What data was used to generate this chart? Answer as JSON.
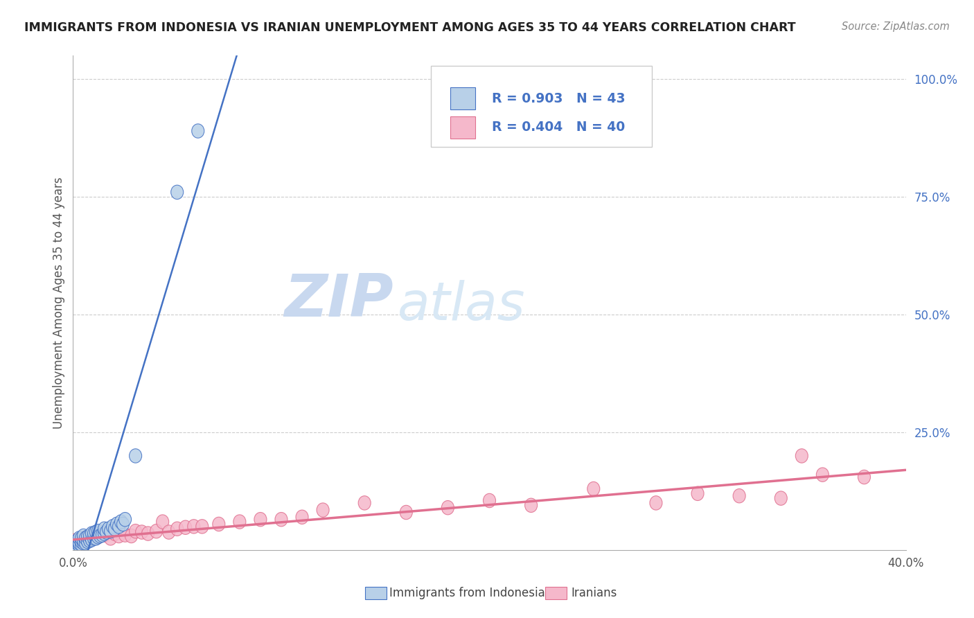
{
  "title": "IMMIGRANTS FROM INDONESIA VS IRANIAN UNEMPLOYMENT AMONG AGES 35 TO 44 YEARS CORRELATION CHART",
  "source_text": "Source: ZipAtlas.com",
  "ylabel": "Unemployment Among Ages 35 to 44 years",
  "xlim": [
    0.0,
    0.4
  ],
  "ylim": [
    0.0,
    1.05
  ],
  "legend_r1": "R = 0.903",
  "legend_n1": "N = 43",
  "legend_r2": "R = 0.404",
  "legend_n2": "N = 40",
  "legend_label1": "Immigrants from Indonesia",
  "legend_label2": "Iranians",
  "color_blue": "#b8d0e8",
  "color_pink": "#f5b8cb",
  "line_color_blue": "#4472c4",
  "line_color_pink": "#e07090",
  "text_color_blue": "#4472c4",
  "background_color": "#ffffff",
  "watermark_zip_color": "#c8d8ef",
  "watermark_atlas_color": "#d8e8f5",
  "grid_color": "#cccccc",
  "blue_x": [
    0.001,
    0.002,
    0.002,
    0.003,
    0.003,
    0.003,
    0.004,
    0.004,
    0.004,
    0.005,
    0.005,
    0.005,
    0.006,
    0.006,
    0.007,
    0.007,
    0.008,
    0.008,
    0.009,
    0.009,
    0.01,
    0.01,
    0.011,
    0.011,
    0.012,
    0.012,
    0.013,
    0.014,
    0.015,
    0.015,
    0.016,
    0.017,
    0.018,
    0.019,
    0.02,
    0.021,
    0.022,
    0.023,
    0.024,
    0.025,
    0.03,
    0.05,
    0.06
  ],
  "blue_y": [
    0.01,
    0.015,
    0.02,
    0.01,
    0.015,
    0.025,
    0.012,
    0.018,
    0.025,
    0.015,
    0.02,
    0.03,
    0.015,
    0.025,
    0.018,
    0.028,
    0.02,
    0.03,
    0.022,
    0.035,
    0.025,
    0.035,
    0.025,
    0.038,
    0.028,
    0.04,
    0.03,
    0.032,
    0.035,
    0.045,
    0.038,
    0.045,
    0.04,
    0.05,
    0.045,
    0.055,
    0.05,
    0.06,
    0.055,
    0.065,
    0.2,
    0.76,
    0.89
  ],
  "pink_x": [
    0.001,
    0.005,
    0.008,
    0.01,
    0.012,
    0.015,
    0.018,
    0.02,
    0.022,
    0.025,
    0.028,
    0.03,
    0.033,
    0.036,
    0.04,
    0.043,
    0.046,
    0.05,
    0.054,
    0.058,
    0.062,
    0.07,
    0.08,
    0.09,
    0.1,
    0.11,
    0.12,
    0.14,
    0.16,
    0.18,
    0.2,
    0.22,
    0.25,
    0.28,
    0.3,
    0.32,
    0.34,
    0.35,
    0.36,
    0.38
  ],
  "pink_y": [
    0.02,
    0.025,
    0.025,
    0.03,
    0.028,
    0.032,
    0.025,
    0.035,
    0.03,
    0.032,
    0.03,
    0.04,
    0.038,
    0.035,
    0.04,
    0.06,
    0.038,
    0.045,
    0.048,
    0.05,
    0.05,
    0.055,
    0.06,
    0.065,
    0.065,
    0.07,
    0.085,
    0.1,
    0.08,
    0.09,
    0.105,
    0.095,
    0.13,
    0.1,
    0.12,
    0.115,
    0.11,
    0.2,
    0.16,
    0.155
  ],
  "blue_line_x": [
    -0.005,
    0.082
  ],
  "blue_line_y": [
    -0.18,
    1.1
  ],
  "pink_line_x": [
    0.0,
    0.4
  ],
  "pink_line_y": [
    0.022,
    0.17
  ]
}
